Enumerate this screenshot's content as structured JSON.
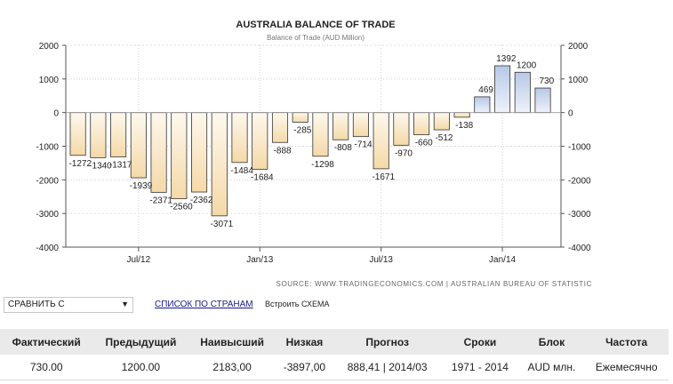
{
  "chart_data": {
    "type": "bar",
    "title": "AUSTRALIA BALANCE OF TRADE",
    "subtitle": "Balance of Trade (AUD Million)",
    "categories": [
      "Apr/12",
      "May/12",
      "Jun/12",
      "Jul/12",
      "Aug/12",
      "Sep/12",
      "Oct/12",
      "Nov/12",
      "Dec/12",
      "Jan/13",
      "Feb/13",
      "Mar/13",
      "Apr/13",
      "May/13",
      "Jun/13",
      "Jul/13",
      "Aug/13",
      "Sep/13",
      "Oct/13",
      "Nov/13",
      "Dec/13",
      "Jan/14",
      "Feb/14",
      "Mar/14"
    ],
    "values": [
      -1272,
      -1340,
      -1317,
      -1939,
      -2371,
      -2560,
      -2362,
      -3071,
      -1484,
      -1684,
      -888,
      -285,
      -1298,
      -808,
      -714,
      -1671,
      -970,
      -660,
      -512,
      -138,
      469,
      1392,
      1200,
      730
    ],
    "xticks": [
      {
        "index": 3,
        "label": "Jul/12"
      },
      {
        "index": 9,
        "label": "Jan/13"
      },
      {
        "index": 15,
        "label": "Jul/13"
      },
      {
        "index": 21,
        "label": "Jan/14"
      }
    ],
    "ylim": [
      -4000,
      2000
    ],
    "yticks": [
      2000,
      1000,
      0,
      -1000,
      -2000,
      -3000,
      -4000
    ],
    "xlabel": "",
    "ylabel": "",
    "grid": true,
    "negative_colors": [
      "#fdf8ee",
      "#f5d9a8"
    ],
    "positive_colors": [
      "#eef2fa",
      "#b7c8e6"
    ],
    "source": "SOURCE: WWW.TRADINGECONOMICS.COM | AUSTRALIAN BUREAU OF STATISTIC"
  },
  "controls": {
    "compare_label": "СРАВНИТЬ С",
    "compare_arrow": "▼",
    "country_list_link": "СПИСОК ПО СТРАНАМ",
    "embed_link": "Встроить СХЕМА"
  },
  "stats_table": {
    "headers": [
      "Фактический",
      "Предыдущий",
      "Наивысший",
      "Низкая",
      "Прогноз",
      "Сроки",
      "Блок",
      "Частота"
    ],
    "row": [
      "730.00",
      "1200.00",
      "2183,00",
      "-3897,00",
      "888,41 | 2014/03",
      "1971 - 2014",
      "AUD млн.",
      "Ежемесячно"
    ]
  }
}
